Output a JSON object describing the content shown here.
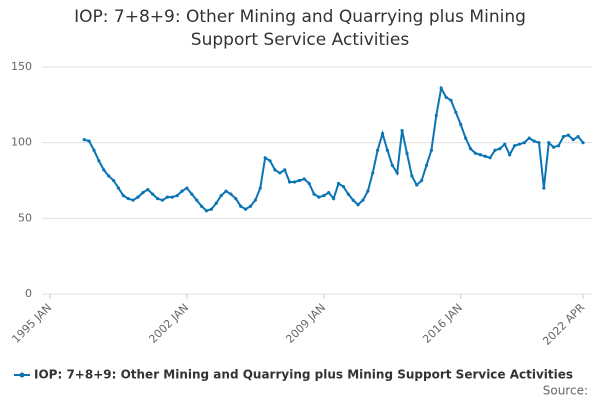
{
  "chart_data": {
    "type": "line",
    "title": "IOP: 7+8+9: Other Mining and Quarrying plus Mining Support Service Activities",
    "x": [
      "1996 OCT",
      "1997 JAN",
      "1997 APR",
      "1997 JUL",
      "1997 OCT",
      "1998 JAN",
      "1998 APR",
      "1998 JUL",
      "1998 OCT",
      "1999 JAN",
      "1999 APR",
      "1999 JUL",
      "1999 OCT",
      "2000 JAN",
      "2000 APR",
      "2000 JUL",
      "2000 OCT",
      "2001 JAN",
      "2001 APR",
      "2001 JUL",
      "2001 OCT",
      "2002 JAN",
      "2002 APR",
      "2002 JUL",
      "2002 OCT",
      "2003 JAN",
      "2003 APR",
      "2003 JUL",
      "2003 OCT",
      "2004 JAN",
      "2004 APR",
      "2004 JUL",
      "2004 OCT",
      "2005 JAN",
      "2005 APR",
      "2005 JUL",
      "2005 OCT",
      "2006 JAN",
      "2006 APR",
      "2006 JUL",
      "2006 OCT",
      "2007 JAN",
      "2007 APR",
      "2007 JUL",
      "2007 OCT",
      "2008 JAN",
      "2008 APR",
      "2008 JUL",
      "2008 OCT",
      "2009 JAN",
      "2009 APR",
      "2009 JUL",
      "2009 OCT",
      "2010 JAN",
      "2010 APR",
      "2010 JUL",
      "2010 OCT",
      "2011 JAN",
      "2011 APR",
      "2011 JUL",
      "2011 OCT",
      "2012 JAN",
      "2012 APR",
      "2012 JUL",
      "2012 OCT",
      "2013 JAN",
      "2013 APR",
      "2013 JUL",
      "2013 OCT",
      "2014 JAN",
      "2014 APR",
      "2014 JUL",
      "2014 OCT",
      "2015 JAN",
      "2015 APR",
      "2015 JUL",
      "2015 OCT",
      "2016 JAN",
      "2016 APR",
      "2016 JUL",
      "2016 OCT",
      "2017 JAN",
      "2017 APR",
      "2017 JUL",
      "2017 OCT",
      "2018 JAN",
      "2018 APR",
      "2018 JUL",
      "2018 OCT",
      "2019 JAN",
      "2019 APR",
      "2019 JUL",
      "2019 OCT",
      "2020 JAN",
      "2020 APR",
      "2020 JUL",
      "2020 OCT",
      "2021 JAN",
      "2021 APR",
      "2021 JUL",
      "2021 OCT",
      "2022 JAN",
      "2022 APR"
    ],
    "series": [
      {
        "name": "IOP: 7+8+9: Other Mining and Quarrying plus Mining Support Service Activities",
        "color": "#0a74b5",
        "values": [
          102,
          101,
          95,
          88,
          82,
          78,
          75,
          70,
          65,
          63,
          62,
          64,
          67,
          69,
          66,
          63,
          62,
          64,
          64,
          65,
          68,
          70,
          66,
          62,
          58,
          55,
          56,
          60,
          65,
          68,
          66,
          63,
          58,
          56,
          58,
          62,
          70,
          90,
          88,
          82,
          80,
          82,
          74,
          74,
          75,
          76,
          73,
          66,
          64,
          65,
          67,
          63,
          73,
          71,
          66,
          62,
          59,
          62,
          68,
          80,
          95,
          106,
          95,
          85,
          80,
          108,
          93,
          78,
          72,
          75,
          85,
          95,
          118,
          136,
          130,
          128,
          120,
          112,
          103,
          96,
          93,
          92,
          91,
          90,
          95,
          96,
          99,
          92,
          98,
          99,
          100,
          103,
          101,
          100,
          70,
          100,
          97,
          98,
          104,
          105,
          102,
          104,
          100
        ]
      }
    ],
    "xlim": [
      "1995 JAN",
      "2022 APR"
    ],
    "xticks": [
      "1995 JAN",
      "2002 JAN",
      "2009 JAN",
      "2016 JAN",
      "2022 APR"
    ],
    "ylim": [
      0,
      150
    ],
    "yticks": [
      0,
      50,
      100,
      150
    ],
    "grid": true,
    "legend": "bottom",
    "source": "Source:"
  }
}
